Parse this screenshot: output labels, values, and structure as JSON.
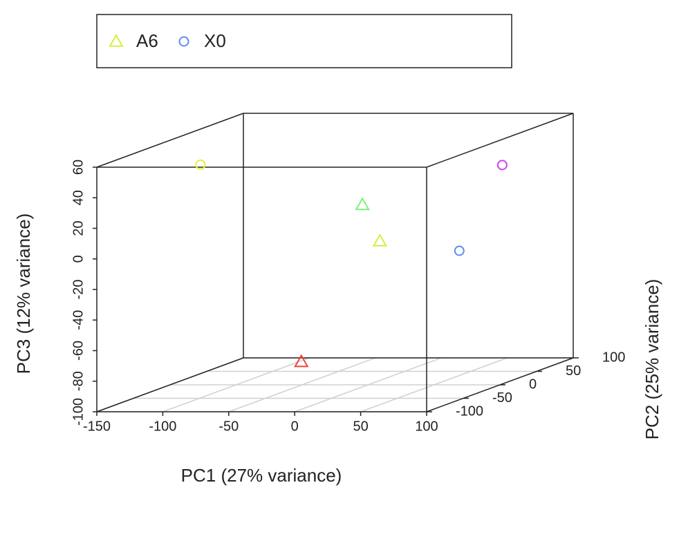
{
  "chart_data": {
    "type": "scatter3d",
    "xlabel": "PC1 (27% variance)",
    "ylabel": "PC2 (25% variance)",
    "zlabel": "PC3 (12% variance)",
    "xlim": [
      -150,
      100
    ],
    "xticks": [
      -150,
      -100,
      -50,
      0,
      50,
      100
    ],
    "ylim": [
      -100,
      100
    ],
    "yticks": [
      -100,
      -50,
      0,
      50,
      100
    ],
    "zlim": [
      -100,
      60
    ],
    "zticks": [
      -100,
      -80,
      -60,
      -40,
      -20,
      0,
      20,
      40,
      60
    ],
    "grid": true,
    "series": [
      {
        "name": "A6",
        "marker": "triangle",
        "color": "#d4f03c",
        "x": [
          -32,
          9,
          -95
        ],
        "y": [
          50,
          0,
          80
        ],
        "z": [
          9,
          -6,
          -99
        ],
        "colors": [
          "#7ef07e",
          "#d4f03c",
          "#e8453c"
        ]
      },
      {
        "name": "X0",
        "marker": "circle",
        "color": "#5b8cf0",
        "x": [
          -127,
          97,
          74
        ],
        "y": [
          0,
          -50,
          50
        ],
        "z": [
          44,
          -3.5,
          35
        ],
        "colors": [
          "#e4f03c",
          "#5b8cf0",
          "#d040f0"
        ]
      }
    ]
  }
}
